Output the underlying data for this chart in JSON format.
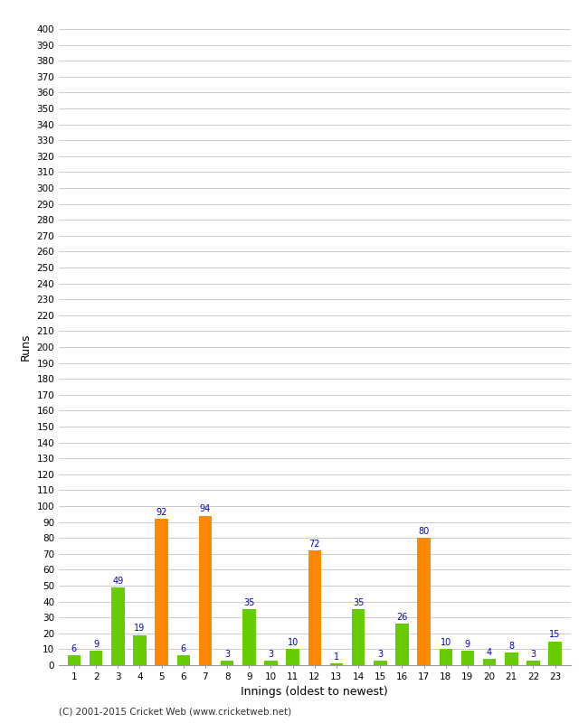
{
  "innings": [
    1,
    2,
    3,
    4,
    5,
    6,
    7,
    8,
    9,
    10,
    11,
    12,
    13,
    14,
    15,
    16,
    17,
    18,
    19,
    20,
    21,
    22,
    23
  ],
  "values": [
    6,
    9,
    49,
    19,
    92,
    6,
    94,
    3,
    35,
    3,
    10,
    72,
    1,
    35,
    3,
    26,
    80,
    10,
    9,
    4,
    8,
    3,
    15
  ],
  "colors": [
    "#66cc00",
    "#66cc00",
    "#66cc00",
    "#66cc00",
    "#ff8800",
    "#66cc00",
    "#ff8800",
    "#66cc00",
    "#66cc00",
    "#66cc00",
    "#66cc00",
    "#ff8800",
    "#66cc00",
    "#66cc00",
    "#66cc00",
    "#66cc00",
    "#ff8800",
    "#66cc00",
    "#66cc00",
    "#66cc00",
    "#66cc00",
    "#66cc00",
    "#66cc00"
  ],
  "ylabel": "Runs",
  "xlabel": "Innings (oldest to newest)",
  "ytick_step": 10,
  "ymax": 400,
  "background_color": "#ffffff",
  "grid_color": "#cccccc",
  "label_color": "#0000cc",
  "footer": "(C) 2001-2015 Cricket Web (www.cricketweb.net)",
  "bar_width": 0.6,
  "label_fontsize": 7,
  "axis_fontsize": 7.5,
  "footer_fontsize": 7.5
}
